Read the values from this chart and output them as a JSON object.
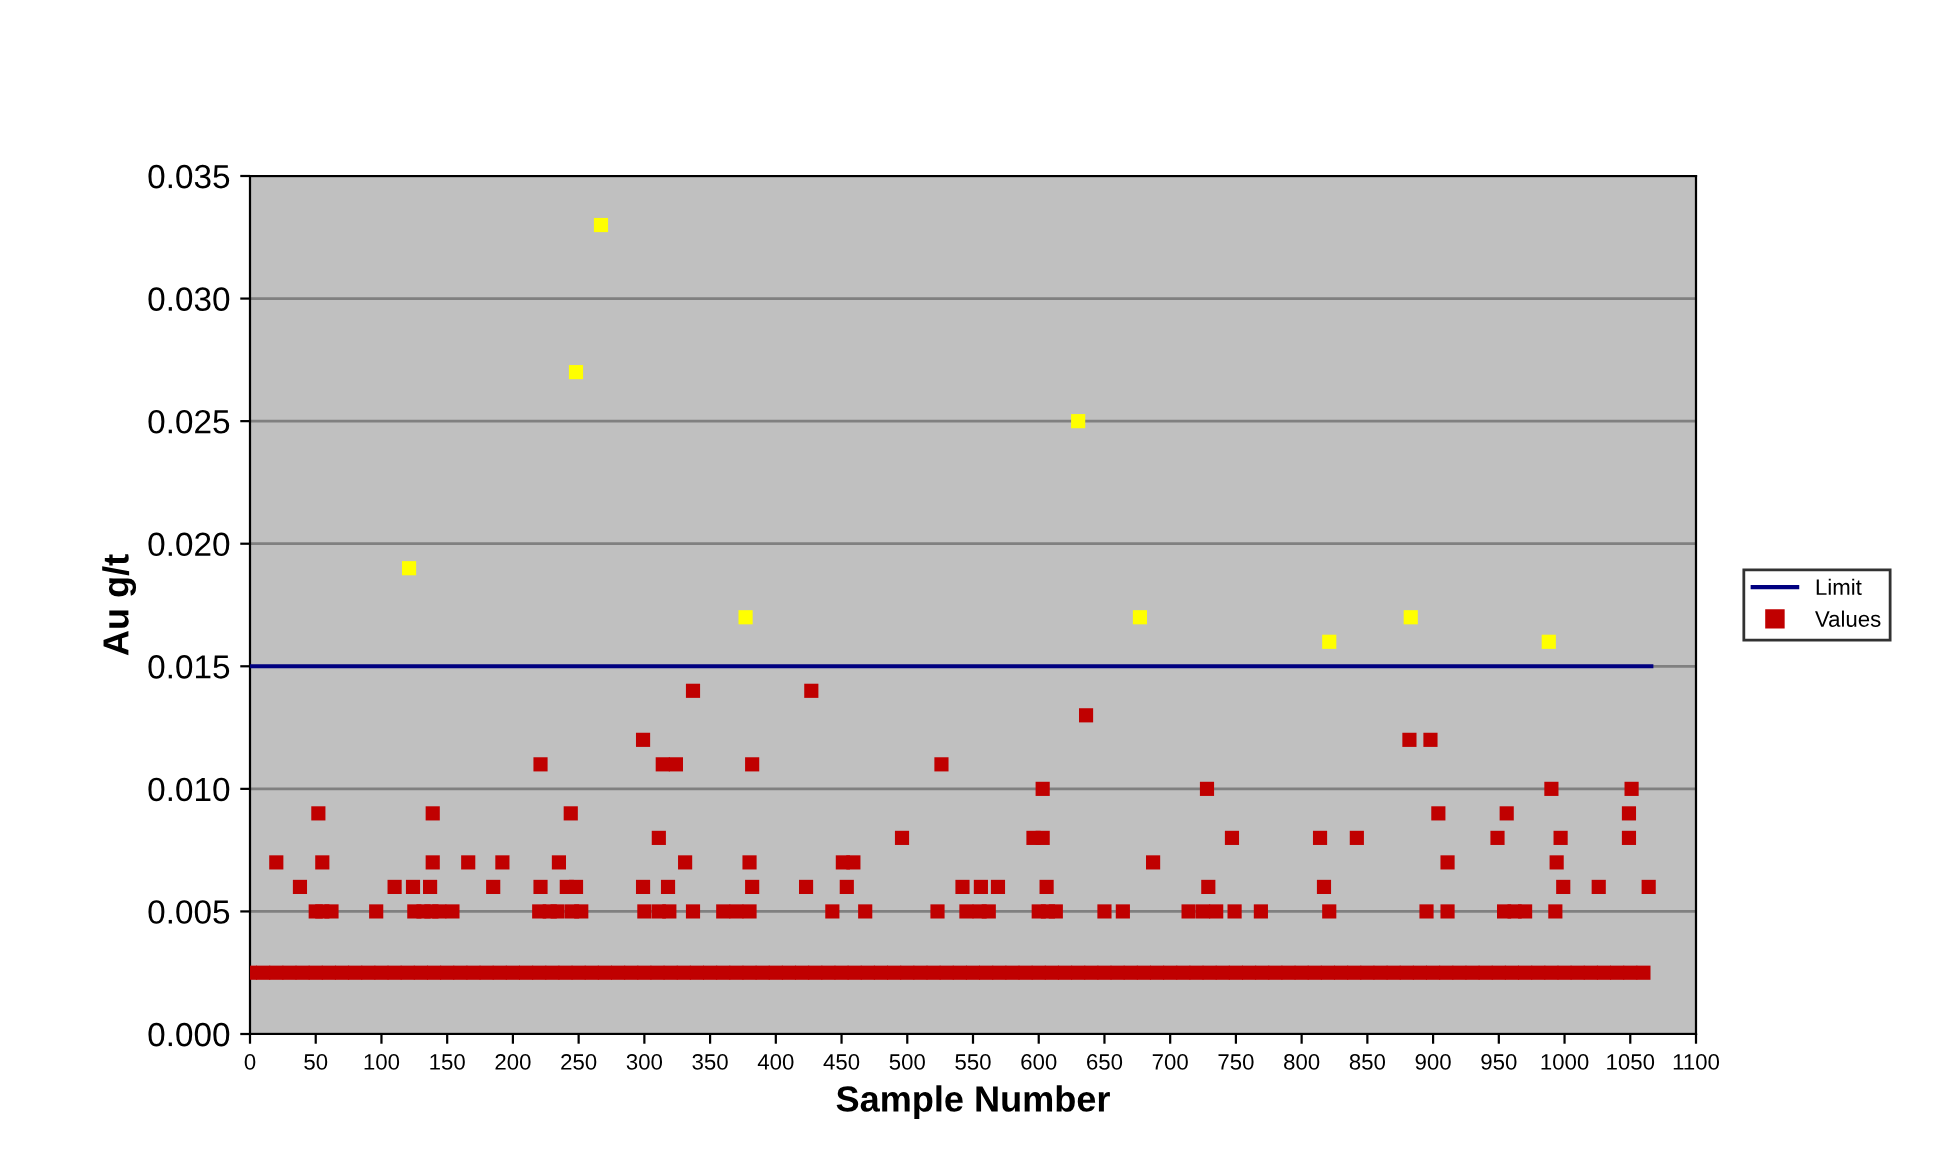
{
  "chart_data": {
    "type": "scatter",
    "xlabel": "Sample Number",
    "ylabel": "Au g/t",
    "xlim": [
      0,
      1100
    ],
    "xticks": [
      0,
      50,
      100,
      150,
      200,
      250,
      300,
      350,
      400,
      450,
      500,
      550,
      600,
      650,
      700,
      750,
      800,
      850,
      900,
      950,
      1000,
      1050,
      1100
    ],
    "ylim": [
      0,
      0.035
    ],
    "yticks": [
      {
        "value": 0,
        "label": "0.000"
      },
      {
        "value": 0.005,
        "label": "0.005"
      },
      {
        "value": 0.01,
        "label": "0.010"
      },
      {
        "value": 0.015,
        "label": "0.015"
      },
      {
        "value": 0.02,
        "label": "0.020"
      },
      {
        "value": 0.025,
        "label": "0.025"
      },
      {
        "value": 0.03,
        "label": "0.030"
      },
      {
        "value": 0.035,
        "label": "0.035"
      }
    ],
    "grid": "y",
    "legend": "right",
    "marker": "square",
    "series": [
      {
        "name": "Limit",
        "type": "line",
        "color": "#000080",
        "line_style": "solid",
        "marker": "none",
        "x": [
          0,
          1066
        ],
        "values": [
          0.015,
          0.015
        ]
      },
      {
        "name": "Values",
        "color": "#c00000",
        "x": [
          50,
          55,
          62,
          96,
          125,
          132,
          138,
          144,
          154,
          220,
          228,
          234,
          245,
          252,
          300,
          311,
          319,
          337,
          360,
          370,
          380,
          443,
          468,
          523,
          545,
          555,
          562,
          600,
          607,
          613,
          650,
          664,
          714,
          725,
          735,
          749,
          769,
          821,
          895,
          911,
          954,
          962,
          970,
          993,
          38,
          110,
          124,
          137,
          185,
          221,
          241,
          248,
          299,
          318,
          382,
          423,
          454,
          542,
          556,
          569,
          606,
          729,
          817,
          999,
          1026,
          1064,
          20,
          55,
          139,
          166,
          192,
          235,
          331,
          380,
          451,
          459,
          687,
          911,
          994,
          311,
          496,
          596,
          603,
          747,
          814,
          842,
          949,
          997,
          1049,
          52,
          139,
          244,
          904,
          956,
          1049,
          603,
          728,
          990,
          1051,
          221,
          314,
          324,
          382,
          526,
          299,
          882,
          898,
          636,
          337,
          427,
          0,
          10,
          20,
          30,
          40,
          50,
          60,
          70,
          80,
          90,
          100,
          110,
          120,
          130,
          140,
          150,
          160,
          170,
          180,
          190,
          200,
          210,
          220,
          230,
          240,
          250,
          260,
          270,
          280,
          290,
          300,
          310,
          320,
          330,
          340,
          350,
          360,
          370,
          380,
          390,
          400,
          410,
          420,
          430,
          440,
          450,
          460,
          470,
          480,
          490,
          500,
          510,
          520,
          530,
          540,
          550,
          560,
          570,
          580,
          590,
          600,
          610,
          620,
          630,
          640,
          650,
          660,
          670,
          680,
          690,
          700,
          710,
          720,
          730,
          740,
          750,
          760,
          770,
          780,
          790,
          800,
          810,
          820,
          830,
          840,
          850,
          860,
          870,
          880,
          890,
          900,
          910,
          920,
          930,
          940,
          950,
          960,
          970,
          980,
          990,
          1000,
          1010,
          1020,
          1030,
          1040,
          1050,
          1060
        ],
        "values": [
          0.005,
          0.005,
          0.005,
          0.005,
          0.005,
          0.005,
          0.005,
          0.005,
          0.005,
          0.005,
          0.005,
          0.005,
          0.005,
          0.005,
          0.005,
          0.005,
          0.005,
          0.005,
          0.005,
          0.005,
          0.005,
          0.005,
          0.005,
          0.005,
          0.005,
          0.005,
          0.005,
          0.005,
          0.005,
          0.005,
          0.005,
          0.005,
          0.005,
          0.005,
          0.005,
          0.005,
          0.005,
          0.005,
          0.005,
          0.005,
          0.005,
          0.005,
          0.005,
          0.005,
          0.006,
          0.006,
          0.006,
          0.006,
          0.006,
          0.006,
          0.006,
          0.006,
          0.006,
          0.006,
          0.006,
          0.006,
          0.006,
          0.006,
          0.006,
          0.006,
          0.006,
          0.006,
          0.006,
          0.006,
          0.006,
          0.006,
          0.007,
          0.007,
          0.007,
          0.007,
          0.007,
          0.007,
          0.007,
          0.007,
          0.007,
          0.007,
          0.007,
          0.007,
          0.007,
          0.008,
          0.008,
          0.008,
          0.008,
          0.008,
          0.008,
          0.008,
          0.008,
          0.008,
          0.008,
          0.009,
          0.009,
          0.009,
          0.009,
          0.009,
          0.009,
          0.01,
          0.01,
          0.01,
          0.01,
          0.011,
          0.011,
          0.011,
          0.011,
          0.011,
          0.012,
          0.012,
          0.012,
          0.013,
          0.014,
          0.014,
          0.0025,
          0.0025,
          0.0025,
          0.0025,
          0.0025,
          0.0025,
          0.0025,
          0.0025,
          0.0025,
          0.0025,
          0.0025,
          0.0025,
          0.0025,
          0.0025,
          0.0025,
          0.0025,
          0.0025,
          0.0025,
          0.0025,
          0.0025,
          0.0025,
          0.0025,
          0.0025,
          0.0025,
          0.0025,
          0.0025,
          0.0025,
          0.0025,
          0.0025,
          0.0025,
          0.0025,
          0.0025,
          0.0025,
          0.0025,
          0.0025,
          0.0025,
          0.0025,
          0.0025,
          0.0025,
          0.0025,
          0.0025,
          0.0025,
          0.0025,
          0.0025,
          0.0025,
          0.0025,
          0.0025,
          0.0025,
          0.0025,
          0.0025,
          0.0025,
          0.0025,
          0.0025,
          0.0025,
          0.0025,
          0.0025,
          0.0025,
          0.0025,
          0.0025,
          0.0025,
          0.0025,
          0.0025,
          0.0025,
          0.0025,
          0.0025,
          0.0025,
          0.0025,
          0.0025,
          0.0025,
          0.0025,
          0.0025,
          0.0025,
          0.0025,
          0.0025,
          0.0025,
          0.0025,
          0.0025,
          0.0025,
          0.0025,
          0.0025,
          0.0025,
          0.0025,
          0.0025,
          0.0025,
          0.0025,
          0.0025,
          0.0025,
          0.0025,
          0.0025,
          0.0025,
          0.0025,
          0.0025,
          0.0025,
          0.0025,
          0.0025,
          0.0025,
          0.0025,
          0.0025,
          0.0025,
          0.0025,
          0.0025,
          0.0025,
          0.0025,
          0.0025,
          0.0025,
          0.0025,
          0.0025
        ]
      },
      {
        "color": "#ffff00",
        "x": [
          121,
          248,
          267,
          377,
          630,
          677,
          821,
          883,
          988
        ],
        "values": [
          0.019,
          0.027,
          0.033,
          0.017,
          0.025,
          0.017,
          0.016,
          0.017,
          0.016
        ]
      }
    ]
  }
}
